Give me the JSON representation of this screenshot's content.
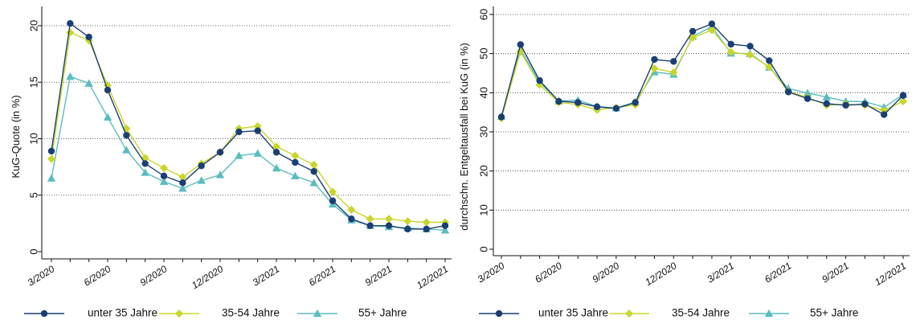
{
  "colors": {
    "s1": "#1b3f73",
    "s2": "#c8d62b",
    "s3": "#5bbcbf",
    "grid": "#333333",
    "axis": "#111111"
  },
  "chart_data": [
    {
      "type": "line",
      "ylabel": "KuG-Quote (in %)",
      "ylim": [
        0,
        20
      ],
      "yticks": [
        0,
        5,
        10,
        15,
        20
      ],
      "x_tick_labels": [
        {
          "i": 0,
          "label": "3/2020"
        },
        {
          "i": 3,
          "label": "6/2020"
        },
        {
          "i": 6,
          "label": "9/2020"
        },
        {
          "i": 9,
          "label": "12/2020"
        },
        {
          "i": 12,
          "label": "3/2021"
        },
        {
          "i": 15,
          "label": "6/2021"
        },
        {
          "i": 18,
          "label": "9/2021"
        },
        {
          "i": 21,
          "label": "12/2021"
        }
      ],
      "grid": "horizontal dotted",
      "legend_position": "bottom",
      "series": [
        {
          "name": "unter 35 Jahre",
          "color_key": "s1",
          "marker": "circle",
          "values": [
            8.9,
            20.2,
            19.0,
            14.3,
            10.3,
            7.8,
            6.7,
            6.1,
            7.6,
            8.8,
            10.6,
            10.7,
            8.8,
            7.9,
            7.1,
            4.5,
            2.9,
            2.3,
            2.3,
            2.0,
            2.0,
            2.3
          ]
        },
        {
          "name": "35-54 Jahre",
          "color_key": "s2",
          "marker": "diamond",
          "values": [
            8.2,
            19.4,
            18.7,
            14.7,
            10.9,
            8.3,
            7.4,
            6.6,
            7.8,
            8.8,
            10.9,
            11.1,
            9.3,
            8.5,
            7.7,
            5.3,
            3.7,
            2.9,
            2.9,
            2.7,
            2.6,
            2.6
          ]
        },
        {
          "name": "55+ Jahre",
          "color_key": "s3",
          "marker": "triangle",
          "values": [
            6.5,
            15.5,
            14.9,
            11.9,
            9.0,
            7.0,
            6.2,
            5.6,
            6.3,
            6.8,
            8.5,
            8.7,
            7.4,
            6.7,
            6.1,
            4.2,
            2.8,
            2.3,
            2.2,
            2.1,
            2.0,
            1.9
          ]
        }
      ]
    },
    {
      "type": "line",
      "ylabel": "durchschn. Entgeltausfall bei KuG (in %)",
      "ylim": [
        0,
        60
      ],
      "yticks": [
        0,
        10,
        20,
        30,
        40,
        50,
        60
      ],
      "x_tick_labels": [
        {
          "i": 0,
          "label": "3/2020"
        },
        {
          "i": 3,
          "label": "6/2020"
        },
        {
          "i": 6,
          "label": "9/2020"
        },
        {
          "i": 9,
          "label": "12/2020"
        },
        {
          "i": 12,
          "label": "3/2021"
        },
        {
          "i": 15,
          "label": "6/2021"
        },
        {
          "i": 18,
          "label": "9/2021"
        },
        {
          "i": 21,
          "label": "12/2021"
        }
      ],
      "grid": "horizontal dotted",
      "legend_position": "bottom",
      "series": [
        {
          "name": "unter 35 Jahre",
          "color_key": "s1",
          "marker": "circle",
          "values": [
            33.8,
            52.3,
            43.1,
            37.8,
            37.5,
            36.4,
            36.0,
            37.5,
            48.5,
            48.0,
            55.7,
            57.6,
            52.4,
            51.9,
            48.2,
            40.2,
            38.5,
            37.2,
            36.8,
            37.1,
            34.4,
            39.3
          ]
        },
        {
          "name": "35-54 Jahre",
          "color_key": "s2",
          "marker": "diamond",
          "values": [
            33.5,
            50.5,
            42.0,
            37.5,
            37.0,
            35.6,
            36.2,
            36.9,
            46.2,
            45.2,
            54.1,
            56.0,
            50.4,
            49.7,
            46.6,
            40.3,
            38.8,
            36.8,
            37.1,
            36.8,
            35.5,
            37.8
          ]
        },
        {
          "name": "55+ Jahre",
          "color_key": "s3",
          "marker": "triangle",
          "values": [
            33.9,
            51.1,
            42.6,
            37.9,
            38.1,
            36.5,
            36.1,
            37.6,
            45.3,
            44.7,
            54.4,
            56.9,
            50.1,
            50.0,
            46.5,
            41.1,
            39.9,
            38.9,
            37.8,
            37.7,
            36.3,
            39.5
          ]
        }
      ]
    }
  ]
}
